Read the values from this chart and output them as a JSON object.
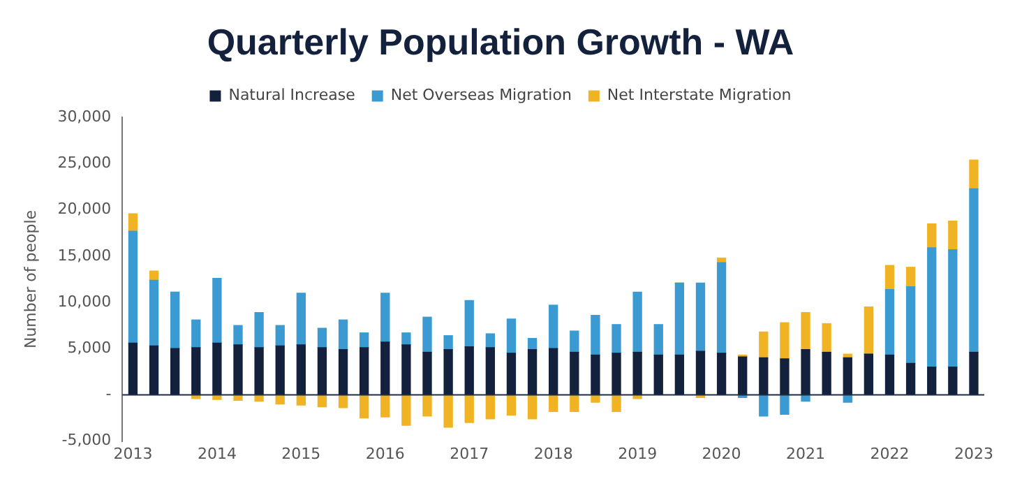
{
  "chart_data": {
    "type": "bar",
    "title": "Quarterly Population Growth - WA",
    "ylabel": "Number of people",
    "stacked": true,
    "legend": "top",
    "grid": false,
    "categories": [
      "2013",
      null,
      null,
      null,
      "2014",
      null,
      null,
      null,
      "2015",
      null,
      null,
      null,
      "2016",
      null,
      null,
      null,
      "2017",
      null,
      null,
      null,
      "2018",
      null,
      null,
      null,
      "2019",
      null,
      null,
      null,
      "2020",
      null,
      null,
      null,
      "2021",
      null,
      null,
      null,
      "2022",
      null,
      null,
      null,
      "2023"
    ],
    "ylim": [
      -5000,
      30000
    ],
    "yticks": [
      {
        "value": -5000,
        "label": "-5,000"
      },
      {
        "value": 0,
        "label": "-"
      },
      {
        "value": 5000,
        "label": "5,000"
      },
      {
        "value": 10000,
        "label": "10,000"
      },
      {
        "value": 15000,
        "label": "15,000"
      },
      {
        "value": 20000,
        "label": "20,000"
      },
      {
        "value": 25000,
        "label": "25,000"
      },
      {
        "value": 30000,
        "label": "30,000"
      }
    ],
    "ref_lines": [
      {
        "axis": "y",
        "value": 0,
        "color": "#1f2d44"
      }
    ],
    "series": [
      {
        "name": "Natural Increase",
        "color": "#14213d",
        "values": [
          5600,
          5300,
          5000,
          5100,
          5600,
          5400,
          5100,
          5300,
          5400,
          5100,
          4900,
          5100,
          5700,
          5400,
          4600,
          4900,
          5200,
          5100,
          4500,
          4900,
          5000,
          4600,
          4300,
          4500,
          4600,
          4300,
          4300,
          4700,
          4500,
          4100,
          4000,
          3900,
          4900,
          4600,
          4000,
          4400,
          4300,
          3400,
          3000,
          3000,
          4600
        ]
      },
      {
        "name": "Net Overseas Migration",
        "color": "#3a9ad1",
        "values": [
          12100,
          7100,
          6100,
          3000,
          7000,
          2100,
          3800,
          2200,
          5600,
          2100,
          3200,
          1600,
          5300,
          1300,
          3800,
          1500,
          5000,
          1500,
          3700,
          1200,
          4700,
          2300,
          4300,
          3100,
          6500,
          3300,
          7800,
          7400,
          9800,
          -300,
          -2300,
          -2100,
          -700,
          0,
          -800,
          0,
          7100,
          8300,
          12900,
          12700,
          17700
        ]
      },
      {
        "name": "Net Interstate Migration",
        "color": "#f0b323",
        "values": [
          1900,
          1000,
          0,
          -400,
          -500,
          -600,
          -700,
          -1000,
          -1100,
          -1300,
          -1400,
          -2500,
          -2400,
          -3300,
          -2300,
          -3500,
          -3000,
          -2600,
          -2200,
          -2600,
          -1800,
          -1800,
          -800,
          -1800,
          -400,
          null,
          0,
          -300,
          500,
          200,
          2800,
          3900,
          4000,
          3100,
          400,
          5100,
          2600,
          2100,
          2600,
          3100,
          3100
        ]
      }
    ]
  }
}
